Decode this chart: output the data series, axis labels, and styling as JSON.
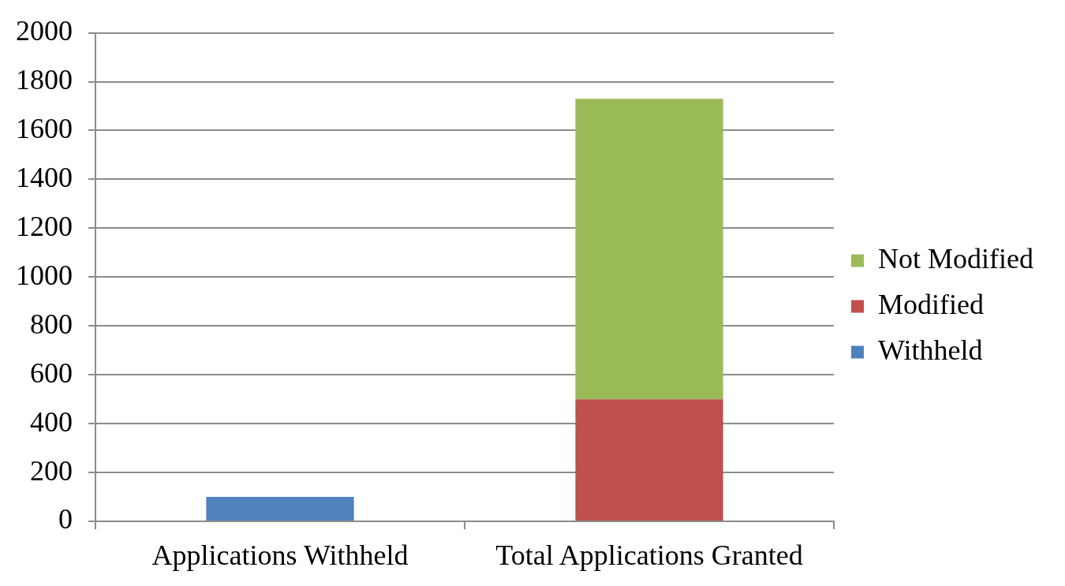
{
  "chart_data": {
    "type": "bar",
    "categories": [
      "Applications Withheld",
      "Total Applications Granted"
    ],
    "series": [
      {
        "name": "Withheld",
        "color": "#4f81bd",
        "values": [
          100,
          null
        ]
      },
      {
        "name": "Modified",
        "color": "#c0504d",
        "values": [
          null,
          500
        ]
      },
      {
        "name": "Not Modified",
        "color": "#9bbb59",
        "values": [
          null,
          1230
        ]
      }
    ],
    "stacked": true,
    "ylim": [
      0,
      2000
    ],
    "yticks": [
      0,
      200,
      400,
      600,
      800,
      1000,
      1200,
      1400,
      1600,
      1800,
      2000
    ],
    "grid": "y",
    "legend": "right"
  }
}
